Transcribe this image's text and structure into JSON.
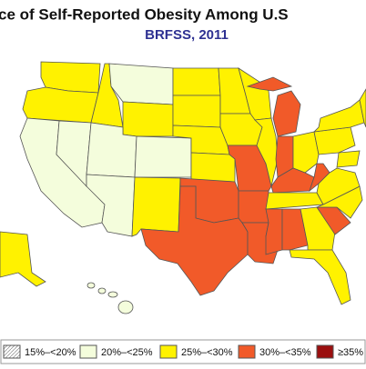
{
  "header": {
    "title": "ce of Self-Reported Obesity Among U.S",
    "subtitle": "BRFSS, 2011"
  },
  "legend": [
    {
      "label": "15%–<20%",
      "color": "#ffffff"
    },
    {
      "label": "20%–<25%",
      "color": "#f4fddc"
    },
    {
      "label": "25%–<30%",
      "color": "#fff200"
    },
    {
      "label": "30%–<35%",
      "color": "#f15a29"
    },
    {
      "label": "≥35%",
      "color": "#9b0f0f"
    }
  ]
}
